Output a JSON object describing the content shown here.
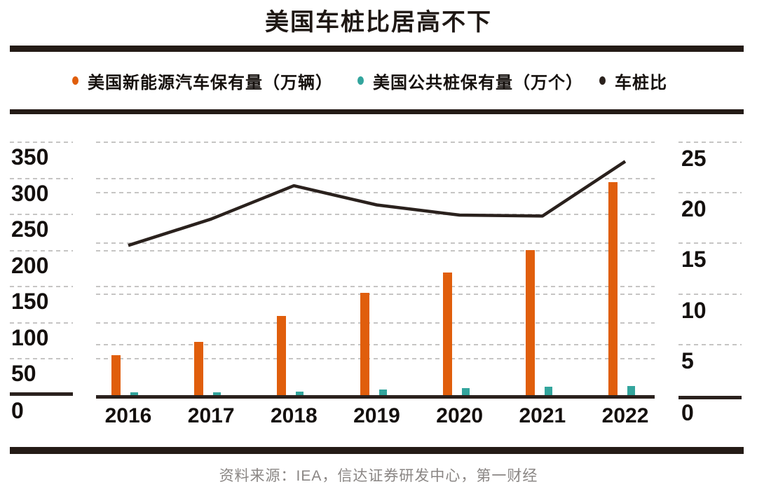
{
  "title": "美国车桩比居高不下",
  "legend": {
    "items": [
      {
        "label": "美国新能源汽车保有量（万辆）",
        "color": "#E05E0C"
      },
      {
        "label": "美国公共桩保有量（万个）",
        "color": "#33A59D"
      },
      {
        "label": "车桩比",
        "color": "#2A211D"
      }
    ]
  },
  "source_note": "资料来源：IEA，信达证券研发中心，第一财经",
  "chart_data": {
    "type": "bar",
    "subtype": "grouped bars + line, dual y-axis combo",
    "title": "美国车桩比居高不下",
    "categories": [
      "2016",
      "2017",
      "2018",
      "2019",
      "2020",
      "2021",
      "2022"
    ],
    "series": [
      {
        "name": "美国新能源汽车保有量（万辆）",
        "type": "bar",
        "axis": "left",
        "color": "#E05E0C",
        "values": [
          55,
          74,
          110,
          142,
          170,
          201,
          295
        ]
      },
      {
        "name": "美国公共桩保有量（万个）",
        "type": "bar",
        "axis": "left",
        "color": "#33A59D",
        "values": [
          3.7,
          4.3,
          5.3,
          7.6,
          9.6,
          11.4,
          12.8
        ]
      },
      {
        "name": "车桩比",
        "type": "line",
        "axis": "right",
        "color": "#2A211D",
        "values": [
          14.8,
          17.4,
          20.7,
          18.8,
          17.8,
          17.7,
          23.1
        ]
      }
    ],
    "left_axis": {
      "min": 0,
      "max": 350,
      "step": 50,
      "ticks": [
        0,
        50,
        100,
        150,
        200,
        250,
        300,
        350
      ]
    },
    "right_axis": {
      "min": 0,
      "max": 25,
      "step": 5,
      "ticks": [
        0,
        5,
        10,
        15,
        20,
        25
      ]
    },
    "grid": "horizontal dashed gridlines for both axis scales, tick labels below gridlines",
    "legend_position": "top",
    "colors": {
      "bar_nev": "#E05E0C",
      "bar_pile": "#33A59D",
      "ratio_line": "#2A211D",
      "divider": "#241B16",
      "gridline": "#C6C5C4",
      "source_text": "#8A8684"
    }
  }
}
